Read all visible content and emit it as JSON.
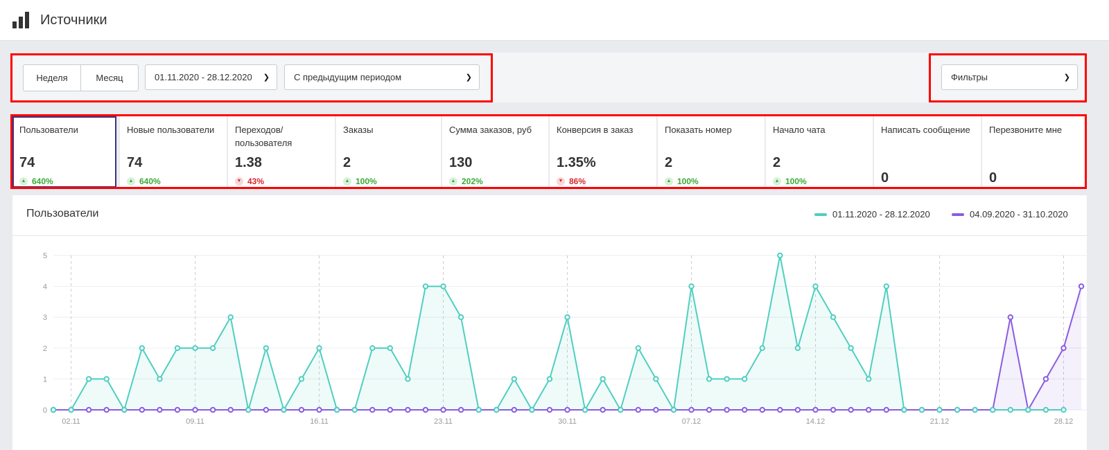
{
  "header": {
    "title": "Источники",
    "icon": "bar-chart-icon"
  },
  "controls": {
    "period_week": "Неделя",
    "period_month": "Месяц",
    "date_range": "01.11.2020 - 28.12.2020",
    "compare": "С предыдущим периодом",
    "filters": "Фильтры"
  },
  "kpis": [
    {
      "label": "Пользователи",
      "value": "74",
      "change": "640%",
      "trend": "up"
    },
    {
      "label": "Новые пользователи",
      "value": "74",
      "change": "640%",
      "trend": "up"
    },
    {
      "label": "Переходов/ пользователя",
      "value": "1.38",
      "change": "43%",
      "trend": "down"
    },
    {
      "label": "Заказы",
      "value": "2",
      "change": "100%",
      "trend": "up"
    },
    {
      "label": "Сумма заказов, руб",
      "value": "130",
      "change": "202%",
      "trend": "up"
    },
    {
      "label": "Конверсия в заказ",
      "value": "1.35%",
      "change": "86%",
      "trend": "down"
    },
    {
      "label": "Показать номер",
      "value": "2",
      "change": "100%",
      "trend": "up"
    },
    {
      "label": "Начало чата",
      "value": "2",
      "change": "100%",
      "trend": "up"
    },
    {
      "label": "Написать сообщение",
      "value": "0",
      "change": "",
      "trend": "none"
    },
    {
      "label": "Перезвоните мне",
      "value": "0",
      "change": "",
      "trend": "none"
    }
  ],
  "colors": {
    "accent": "#3a3285",
    "up": "#3aaa35",
    "down": "#d9272e",
    "highlight_box": "#ff0000"
  },
  "chart_data": {
    "type": "line",
    "title": "Пользователи",
    "y_ticks": [
      "0",
      "1",
      "2",
      "3",
      "4",
      "5"
    ],
    "ylim": [
      0,
      5
    ],
    "x_tick_labels": [
      "02.11",
      "09.11",
      "16.11",
      "23.11",
      "30.11",
      "07.12",
      "14.12",
      "21.12",
      "28.12"
    ],
    "grid": true,
    "legend_position": "top-right",
    "series": [
      {
        "name": "01.11.2020 - 28.12.2020",
        "color": "#4ecfc0",
        "values": [
          0,
          0,
          1,
          1,
          0,
          2,
          1,
          2,
          2,
          2,
          3,
          0,
          2,
          0,
          1,
          2,
          0,
          0,
          2,
          2,
          1,
          4,
          4,
          3,
          0,
          0,
          1,
          0,
          1,
          3,
          0,
          1,
          0,
          2,
          1,
          0,
          4,
          1,
          1,
          1,
          2,
          5,
          2,
          4,
          3,
          2,
          1,
          4,
          0,
          0,
          0,
          0,
          0,
          0,
          0,
          0,
          0,
          0
        ]
      },
      {
        "name": "04.09.2020 - 31.10.2020",
        "color": "#8a5ce0",
        "values": [
          0,
          0,
          0,
          0,
          0,
          0,
          0,
          0,
          0,
          0,
          0,
          0,
          0,
          0,
          0,
          0,
          0,
          0,
          0,
          0,
          0,
          0,
          0,
          0,
          0,
          0,
          0,
          0,
          0,
          0,
          0,
          0,
          0,
          0,
          0,
          0,
          0,
          0,
          0,
          0,
          0,
          0,
          0,
          0,
          0,
          0,
          0,
          0,
          0,
          0,
          0,
          0,
          0,
          0,
          3,
          0,
          1,
          2,
          4
        ]
      }
    ]
  }
}
